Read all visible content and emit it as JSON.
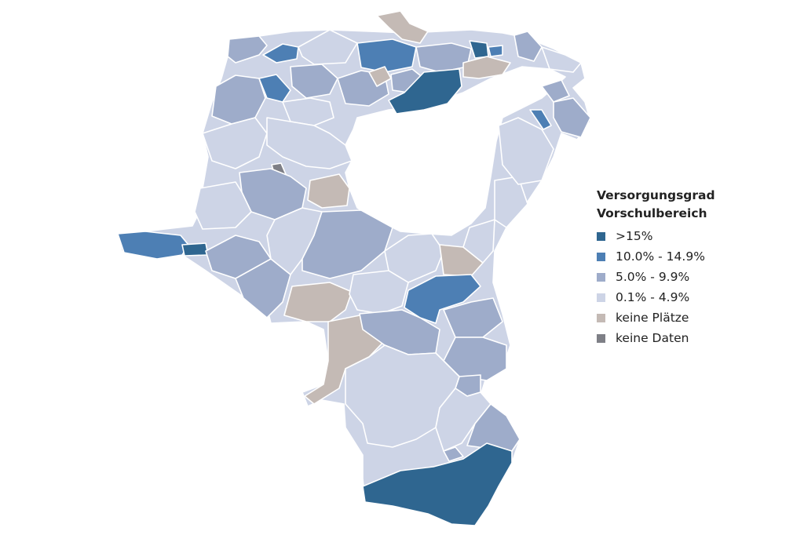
{
  "legend": {
    "title_line1": "Versorgungsgrad",
    "title_line2": "Vorschulbereich",
    "items": [
      {
        "label": ">15%",
        "color": "#2f6690",
        "key": "c1"
      },
      {
        "label": "10.0% - 14.9%",
        "color": "#4d7fb4",
        "key": "c2"
      },
      {
        "label": "5.0% - 9.9%",
        "color": "#9eacca",
        "key": "c3"
      },
      {
        "label": "0.1% - 4.9%",
        "color": "#cdd4e6",
        "key": "c4"
      },
      {
        "label": "keine Plätze",
        "color": "#c4bab5",
        "key": "c5"
      },
      {
        "label": "keine Daten",
        "color": "#7e7f86",
        "key": "c6"
      }
    ]
  }
}
